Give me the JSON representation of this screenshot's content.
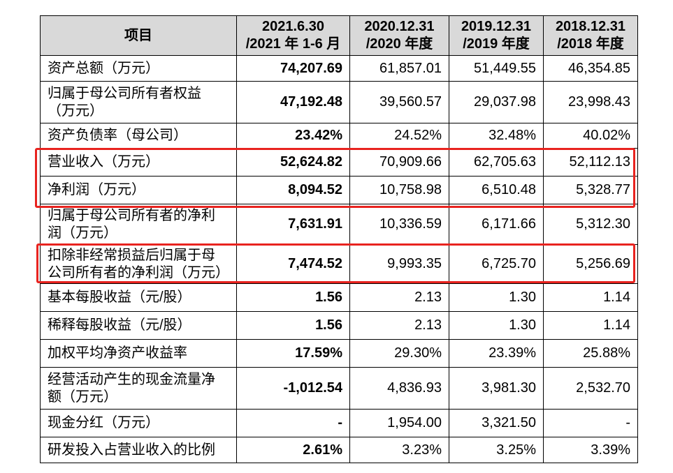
{
  "table": {
    "header": [
      "项目",
      "2021.6.30\n/2021 年 1-6 月",
      "2020.12.31\n/2020 年度",
      "2019.12.31\n/2019 年度",
      "2018.12.31\n/2018 年度"
    ],
    "rows": [
      [
        "资产总额（万元）",
        "74,207.69",
        "61,857.01",
        "51,449.55",
        "46,354.85"
      ],
      [
        "归属于母公司所有者权益（万元）",
        "47,192.48",
        "39,560.57",
        "29,037.98",
        "23,998.43"
      ],
      [
        "资产负债率（母公司）",
        "23.42%",
        "24.52%",
        "32.48%",
        "40.02%"
      ],
      [
        "营业收入（万元）",
        "52,624.82",
        "70,909.66",
        "62,705.63",
        "52,112.13"
      ],
      [
        "净利润（万元）",
        "8,094.52",
        "10,758.98",
        "6,510.48",
        "5,328.77"
      ],
      [
        "归属于母公司所有者的净利润（万元）",
        "7,631.91",
        "10,336.59",
        "6,171.66",
        "5,312.30"
      ],
      [
        "扣除非经常损益后归属于母公司所有者的净利润（万元）",
        "7,474.52",
        "9,993.35",
        "6,725.70",
        "5,256.69"
      ],
      [
        "基本每股收益（元/股）",
        "1.56",
        "2.13",
        "1.30",
        "1.14"
      ],
      [
        "稀释每股收益（元/股）",
        "1.56",
        "2.13",
        "1.30",
        "1.14"
      ],
      [
        "加权平均净资产收益率",
        "17.59%",
        "29.30%",
        "23.39%",
        "25.88%"
      ],
      [
        "经营活动产生的现金流量净额（万元）",
        "-1,012.54",
        "4,836.93",
        "3,981.30",
        "2,532.70"
      ],
      [
        "现金分红（万元）",
        "-",
        "1,954.00",
        "3,321.50",
        "-"
      ],
      [
        "研发投入占营业收入的比例",
        "2.61%",
        "3.23%",
        "3.25%",
        "3.39%"
      ]
    ]
  }
}
